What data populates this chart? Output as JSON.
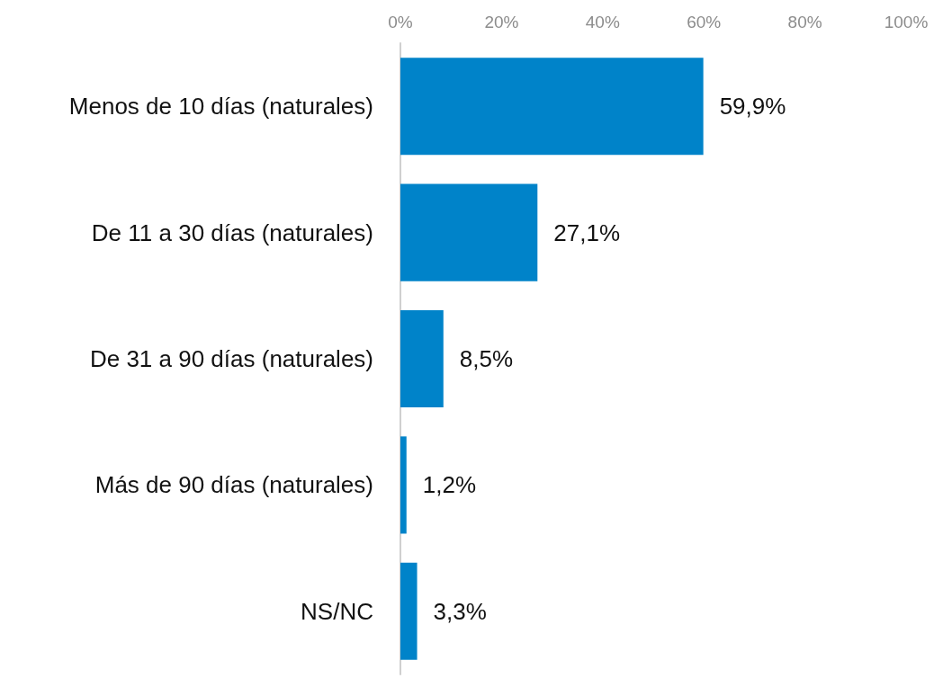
{
  "chart_data": {
    "type": "bar",
    "orientation": "horizontal",
    "categories": [
      "Menos de 10 días (naturales)",
      "De 11 a 30 días (naturales)",
      "De 31 a 90 días (naturales)",
      "Más de 90 días (naturales)",
      "NS/NC"
    ],
    "values": [
      59.9,
      27.1,
      8.5,
      1.2,
      3.3
    ],
    "value_labels": [
      "59,9%",
      "27,1%",
      "8,5%",
      "1,2%",
      "3,3%"
    ],
    "color": "#0083c9",
    "xlim": [
      0,
      100
    ],
    "xticks": [
      {
        "value": 0,
        "label": "0%"
      },
      {
        "value": 20,
        "label": "20%"
      },
      {
        "value": 40,
        "label": "40%"
      },
      {
        "value": 60,
        "label": "60%"
      },
      {
        "value": 80,
        "label": "80%"
      },
      {
        "value": 100,
        "label": "100%"
      }
    ],
    "grid": false
  }
}
